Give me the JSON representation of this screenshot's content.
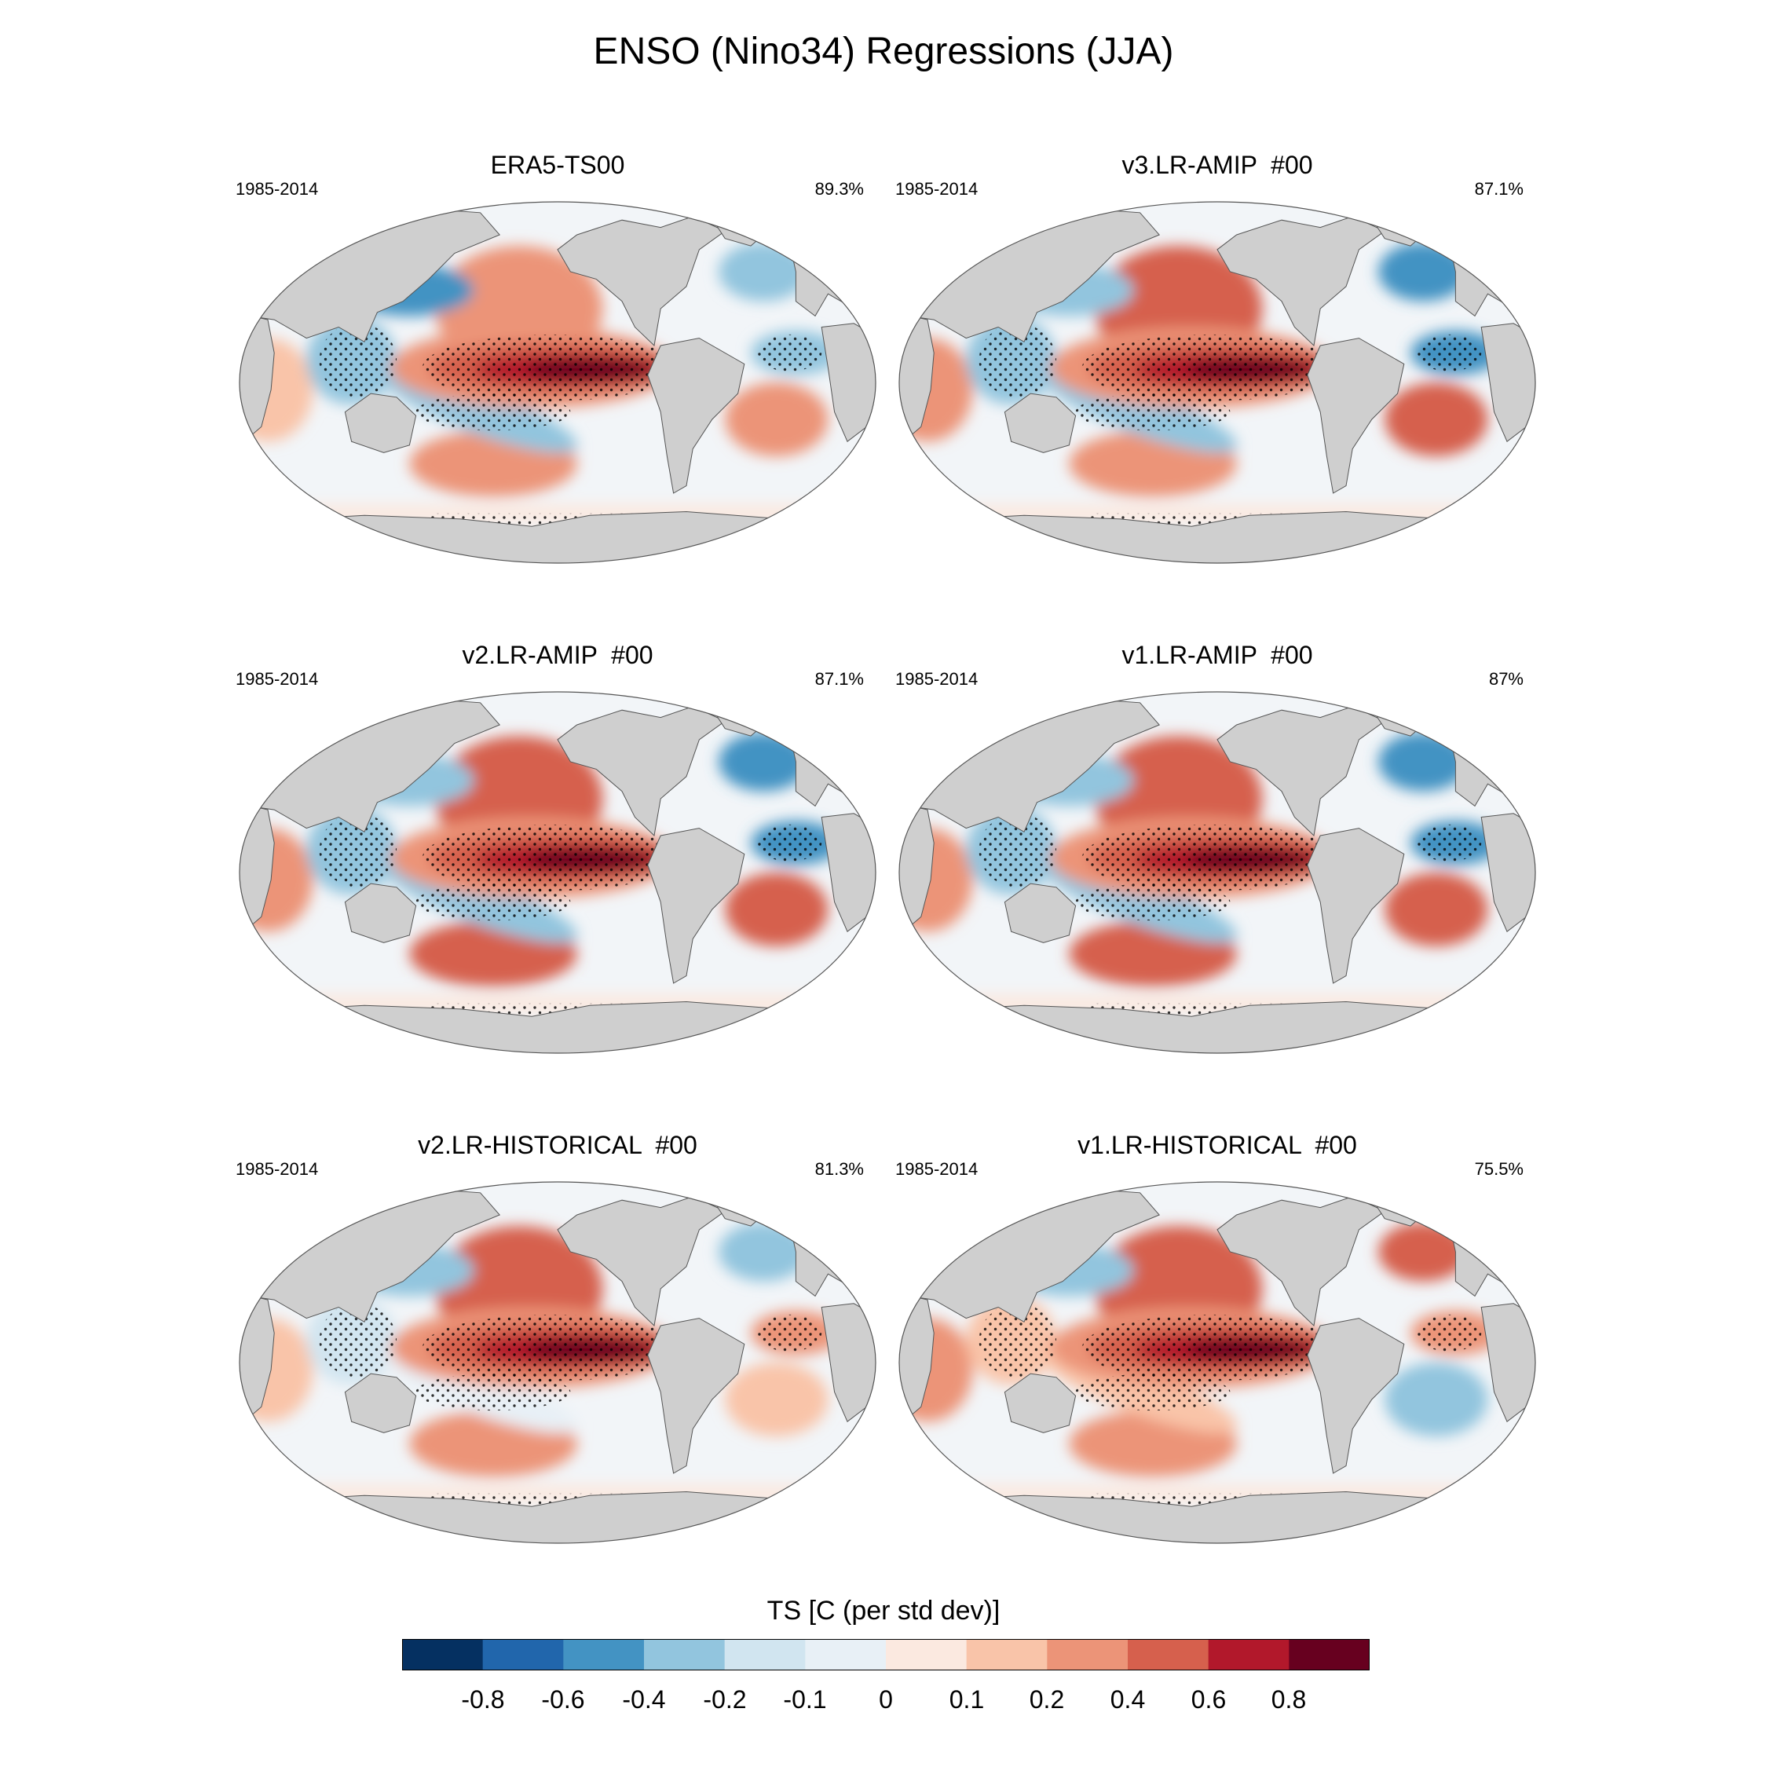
{
  "figure": {
    "title": "ENSO (Nino34) Regressions (JJA)"
  },
  "chart_data": {
    "type": "heatmap",
    "title": "ENSO (Nino34) Regressions (JJA)",
    "variable": "TS [C (per std dev)]",
    "projection": "Robinson world map (Pacific centered)",
    "stippling": "statistically significant regions",
    "panels": [
      {
        "title": "ERA5-TS00",
        "period": "1985-2014",
        "percent": "89.3%",
        "features": {
          "eq_pacific": 1.0,
          "nw_pacific": -0.5,
          "ne_pacific": 0.35,
          "maritime": -0.4,
          "spac_diag": -0.35,
          "natl": -0.35,
          "tatl": -0.3,
          "satl": 0.25,
          "spac": 0.2,
          "io": 0.15,
          "antarctic": 0.08
        }
      },
      {
        "title": "v3.LR-AMIP  #00",
        "period": "1985-2014",
        "percent": "87.1%",
        "features": {
          "eq_pacific": 1.0,
          "nw_pacific": -0.35,
          "ne_pacific": 0.4,
          "maritime": -0.35,
          "spac_diag": -0.4,
          "natl": -0.5,
          "tatl": -0.45,
          "satl": 0.4,
          "spac": 0.35,
          "io": 0.2,
          "antarctic": 0.08
        }
      },
      {
        "title": "v2.LR-AMIP  #00",
        "period": "1985-2014",
        "percent": "87.1%",
        "features": {
          "eq_pacific": 1.0,
          "nw_pacific": -0.35,
          "ne_pacific": 0.4,
          "maritime": -0.35,
          "spac_diag": -0.4,
          "natl": -0.5,
          "tatl": -0.45,
          "satl": 0.4,
          "spac": 0.4,
          "io": 0.2,
          "antarctic": 0.08
        }
      },
      {
        "title": "v1.LR-AMIP  #00",
        "period": "1985-2014",
        "percent": "87%",
        "features": {
          "eq_pacific": 1.0,
          "nw_pacific": -0.35,
          "ne_pacific": 0.4,
          "maritime": -0.35,
          "spac_diag": -0.4,
          "natl": -0.5,
          "tatl": -0.45,
          "satl": 0.4,
          "spac": 0.4,
          "io": 0.2,
          "antarctic": 0.08
        }
      },
      {
        "title": "v2.LR-HISTORICAL  #00",
        "period": "1985-2014",
        "percent": "81.3%",
        "features": {
          "eq_pacific": 1.0,
          "nw_pacific": -0.3,
          "ne_pacific": 0.55,
          "maritime": -0.15,
          "spac_diag": -0.1,
          "natl": -0.3,
          "tatl": 0.3,
          "satl": 0.15,
          "spac": 0.3,
          "io": 0.15,
          "antarctic": 0.08
        }
      },
      {
        "title": "v1.LR-HISTORICAL  #00",
        "period": "1985-2014",
        "percent": "75.5%",
        "features": {
          "eq_pacific": 1.0,
          "nw_pacific": -0.3,
          "ne_pacific": 0.45,
          "maritime": 0.1,
          "spac_diag": 0.15,
          "natl": 0.45,
          "tatl": 0.2,
          "satl": -0.3,
          "spac": 0.3,
          "io": 0.2,
          "antarctic": 0.08
        }
      }
    ],
    "colorbar": {
      "title": "TS [C (per std dev)]",
      "tick_labels": [
        "-0.8",
        "-0.6",
        "-0.4",
        "-0.2",
        "-0.1",
        "0",
        "0.1",
        "0.2",
        "0.4",
        "0.6",
        "0.8"
      ],
      "levels": [
        -0.8,
        -0.6,
        -0.4,
        -0.2,
        -0.1,
        0,
        0.1,
        0.2,
        0.4,
        0.6,
        0.8
      ],
      "colors": [
        "#053061",
        "#2166ac",
        "#4393c3",
        "#92c5de",
        "#d1e5f0",
        "#e8f0f6",
        "#fbe9e0",
        "#f9c4a9",
        "#ec9478",
        "#d6604d",
        "#b2182b",
        "#67001f"
      ]
    }
  },
  "style": {
    "land": "#cfcfcf",
    "ocean_neutral": "#f2f5f8",
    "outline": "#555555"
  }
}
